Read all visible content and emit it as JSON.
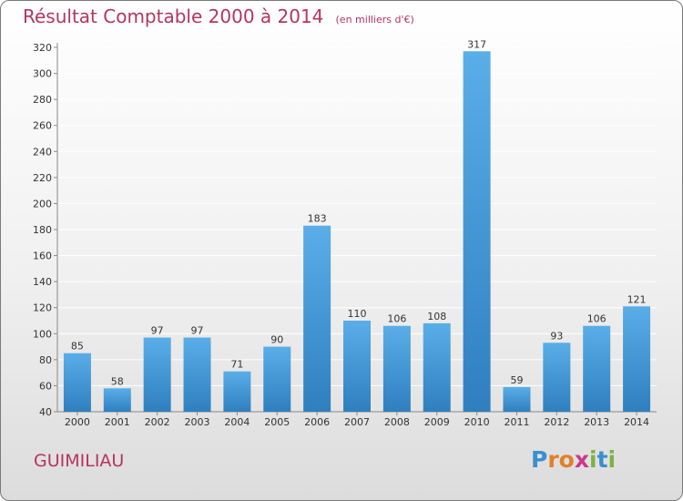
{
  "chart_data": {
    "type": "bar",
    "title": "Résultat Comptable 2000 à 2014",
    "subtitle": "(en milliers d'€)",
    "categories": [
      "2000",
      "2001",
      "2002",
      "2003",
      "2004",
      "2005",
      "2006",
      "2007",
      "2008",
      "2009",
      "2010",
      "2011",
      "2012",
      "2013",
      "2014"
    ],
    "values": [
      85,
      58,
      97,
      97,
      71,
      90,
      183,
      110,
      106,
      108,
      317,
      59,
      93,
      106,
      121
    ],
    "ylim": [
      40,
      320
    ],
    "yticks": [
      40,
      60,
      80,
      100,
      120,
      140,
      160,
      180,
      200,
      220,
      240,
      260,
      280,
      300,
      320
    ],
    "grid": true,
    "xlabel": "",
    "ylabel": "",
    "bar_color_light": "#5aaee8",
    "bar_color_dark": "#2f7fbf"
  },
  "footer": {
    "location": "GUIMILIAU"
  },
  "logo": {
    "letters": [
      "P",
      "r",
      "o",
      "x",
      "i",
      "t",
      "i"
    ],
    "colors": [
      "#3a8fd0",
      "#e0802a",
      "#e0802a",
      "#c83a8a",
      "#7cb342",
      "#3a8fd0",
      "#7cb342"
    ]
  },
  "colors": {
    "title": "#b5345f",
    "grid": "#ffffff"
  }
}
